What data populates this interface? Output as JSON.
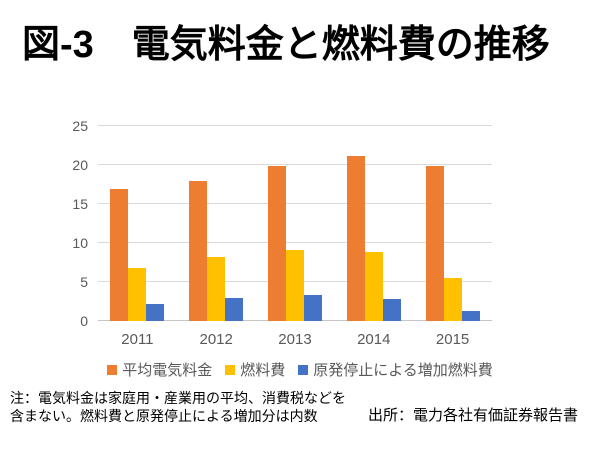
{
  "page": {
    "title": "図-3　電気料金と燃料費の推移",
    "note": "注：電気料金は家庭用・産業用の平均、消費税などを\n含まない。燃料費と原発停止による増加分は内数",
    "source": "出所：電力各社有価証券報告書"
  },
  "chart_data": {
    "type": "bar",
    "title": "電気料金と燃料費の推移",
    "categories": [
      "2011",
      "2012",
      "2013",
      "2014",
      "2015"
    ],
    "series": [
      {
        "id": "electricity-rate",
        "name": "平均電気料金",
        "color": "#ED7D31",
        "values": [
          16.9,
          18.0,
          19.9,
          21.2,
          19.9
        ]
      },
      {
        "id": "fuel-cost",
        "name": "燃料費",
        "color": "#FFC000",
        "values": [
          6.8,
          8.2,
          9.1,
          8.8,
          5.5
        ]
      },
      {
        "id": "nuclear-shutdown-added-fuel",
        "name": "原発停止による増加燃料費",
        "color": "#4472C4",
        "values": [
          2.2,
          3.0,
          3.3,
          2.8,
          1.3
        ]
      }
    ],
    "xlabel": "",
    "ylabel": "",
    "ylim": [
      0,
      25
    ],
    "yticks": [
      0,
      5,
      10,
      15,
      20,
      25
    ],
    "grid": true,
    "legend_position": "bottom",
    "axis_text_color": "#595959",
    "gridline_color": "#D9D9D9"
  }
}
